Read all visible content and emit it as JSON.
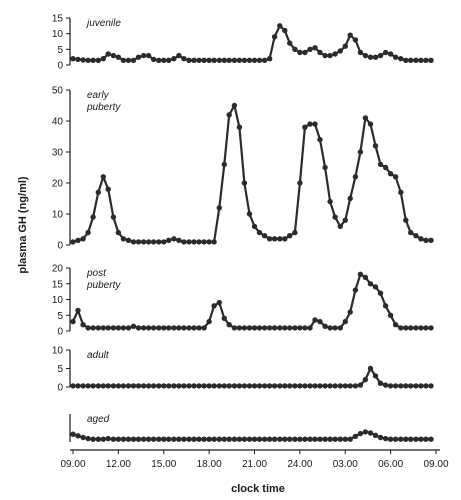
{
  "chart_data": {
    "type": "line",
    "ylabel": "plasma GH (ng/ml)",
    "xlabel": "clock time",
    "x_ticks": [
      "09.00",
      "12.00",
      "15.00",
      "18.00",
      "21.00",
      "24.00",
      "03.00",
      "06.00",
      "09.00"
    ],
    "x_range_hours": [
      9,
      33
    ],
    "color": "#2b2b2b",
    "panels": [
      {
        "name": "juvenile",
        "title_lines": [
          "juvenile"
        ],
        "ylim": [
          0,
          15
        ],
        "yticks": [
          0,
          5,
          10,
          15
        ],
        "x": [
          9.0,
          9.33,
          9.67,
          10.0,
          10.33,
          10.67,
          11.0,
          11.33,
          11.67,
          12.0,
          12.33,
          12.67,
          13.0,
          13.33,
          13.67,
          14.0,
          14.33,
          14.67,
          15.0,
          15.33,
          15.67,
          16.0,
          16.33,
          16.67,
          17.0,
          17.33,
          17.67,
          18.0,
          18.33,
          18.67,
          19.0,
          19.33,
          19.67,
          20.0,
          20.33,
          20.67,
          21.0,
          21.33,
          21.67,
          22.0,
          22.33,
          22.67,
          23.0,
          23.33,
          23.67,
          24.0,
          24.33,
          24.67,
          25.0,
          25.33,
          25.67,
          26.0,
          26.33,
          26.67,
          27.0,
          27.33,
          27.67,
          28.0,
          28.33,
          28.67,
          29.0,
          29.33,
          29.67,
          30.0,
          30.33,
          30.67,
          31.0,
          31.33,
          31.67,
          32.0,
          32.33,
          32.67
        ],
        "values": [
          2,
          1.8,
          1.6,
          1.5,
          1.5,
          1.5,
          2,
          3.5,
          3,
          2.5,
          1.5,
          1.5,
          1.5,
          2.5,
          3,
          3,
          1.8,
          1.5,
          1.5,
          1.5,
          2,
          3,
          2,
          1.5,
          1.5,
          1.5,
          1.5,
          1.5,
          1.5,
          1.5,
          1.5,
          1.5,
          1.5,
          1.5,
          1.5,
          1.5,
          1.5,
          1.5,
          1.5,
          2,
          9,
          12.5,
          11,
          7,
          5,
          4,
          4,
          5,
          5.5,
          4,
          3,
          3,
          3.5,
          4.5,
          6,
          9.5,
          8,
          4,
          3,
          2.5,
          2.5,
          3,
          4,
          3.5,
          2.5,
          2,
          1.5,
          1.5,
          1.5,
          1.5,
          1.5,
          1.5
        ]
      },
      {
        "name": "early puberty",
        "title_lines": [
          "early",
          "puberty"
        ],
        "ylim": [
          0,
          50
        ],
        "yticks": [
          0,
          10,
          20,
          30,
          40,
          50
        ],
        "x": [
          9.0,
          9.33,
          9.67,
          10.0,
          10.33,
          10.67,
          11.0,
          11.33,
          11.67,
          12.0,
          12.33,
          12.67,
          13.0,
          13.33,
          13.67,
          14.0,
          14.33,
          14.67,
          15.0,
          15.33,
          15.67,
          16.0,
          16.33,
          16.67,
          17.0,
          17.33,
          17.67,
          18.0,
          18.33,
          18.67,
          19.0,
          19.33,
          19.67,
          20.0,
          20.33,
          20.67,
          21.0,
          21.33,
          21.67,
          22.0,
          22.33,
          22.67,
          23.0,
          23.33,
          23.67,
          24.0,
          24.33,
          24.67,
          25.0,
          25.33,
          25.67,
          26.0,
          26.33,
          26.67,
          27.0,
          27.33,
          27.67,
          28.0,
          28.33,
          28.67,
          29.0,
          29.33,
          29.67,
          30.0,
          30.33,
          30.67,
          31.0,
          31.33,
          31.67,
          32.0,
          32.33,
          32.67
        ],
        "values": [
          1,
          1.5,
          2,
          4,
          9,
          17,
          22,
          18,
          9,
          4,
          2,
          1.5,
          1,
          1,
          1,
          1,
          1,
          1,
          1,
          1.5,
          2,
          1.5,
          1,
          1,
          1,
          1,
          1,
          1,
          1,
          12,
          26,
          42,
          45,
          38,
          20,
          10,
          6,
          4,
          3,
          2,
          2,
          2,
          2,
          3,
          4,
          20,
          38,
          39,
          39,
          34,
          25,
          14,
          9,
          6,
          8,
          15,
          22,
          30,
          41,
          39,
          32,
          26,
          25,
          23,
          22,
          17,
          8,
          4,
          3,
          2,
          1.5,
          1.5
        ]
      },
      {
        "name": "post puberty",
        "title_lines": [
          "post",
          "puberty"
        ],
        "ylim": [
          0,
          20
        ],
        "yticks": [
          0,
          5,
          10,
          15,
          20
        ],
        "x": [
          9.0,
          9.33,
          9.67,
          10.0,
          10.33,
          10.67,
          11.0,
          11.33,
          11.67,
          12.0,
          12.33,
          12.67,
          13.0,
          13.33,
          13.67,
          14.0,
          14.33,
          14.67,
          15.0,
          15.33,
          15.67,
          16.0,
          16.33,
          16.67,
          17.0,
          17.33,
          17.67,
          18.0,
          18.33,
          18.67,
          19.0,
          19.33,
          19.67,
          20.0,
          20.33,
          20.67,
          21.0,
          21.33,
          21.67,
          22.0,
          22.33,
          22.67,
          23.0,
          23.33,
          23.67,
          24.0,
          24.33,
          24.67,
          25.0,
          25.33,
          25.67,
          26.0,
          26.33,
          26.67,
          27.0,
          27.33,
          27.67,
          28.0,
          28.33,
          28.67,
          29.0,
          29.33,
          29.67,
          30.0,
          30.33,
          30.67,
          31.0,
          31.33,
          31.67,
          32.0,
          32.33,
          32.67
        ],
        "values": [
          3,
          6.5,
          2,
          1,
          1,
          1,
          1,
          1,
          1,
          1,
          1,
          1,
          1.5,
          1,
          1,
          1,
          1,
          1,
          1,
          1,
          1,
          1,
          1,
          1,
          1,
          1,
          1,
          3,
          8,
          9,
          4,
          2,
          1,
          1,
          1,
          1,
          1,
          1,
          1,
          1,
          1,
          1,
          1,
          1,
          1,
          1,
          1,
          1,
          3.5,
          3,
          1.5,
          1,
          1,
          1,
          3,
          6,
          13,
          18,
          17,
          15,
          14,
          12,
          8,
          5,
          2,
          1,
          1,
          1,
          1,
          1,
          1,
          1
        ]
      },
      {
        "name": "adult",
        "title_lines": [
          "adult"
        ],
        "ylim": [
          0,
          10
        ],
        "yticks": [
          0,
          5,
          10
        ],
        "x": [
          9.0,
          9.33,
          9.67,
          10.0,
          10.33,
          10.67,
          11.0,
          11.33,
          11.67,
          12.0,
          12.33,
          12.67,
          13.0,
          13.33,
          13.67,
          14.0,
          14.33,
          14.67,
          15.0,
          15.33,
          15.67,
          16.0,
          16.33,
          16.67,
          17.0,
          17.33,
          17.67,
          18.0,
          18.33,
          18.67,
          19.0,
          19.33,
          19.67,
          20.0,
          20.33,
          20.67,
          21.0,
          21.33,
          21.67,
          22.0,
          22.33,
          22.67,
          23.0,
          23.33,
          23.67,
          24.0,
          24.33,
          24.67,
          25.0,
          25.33,
          25.67,
          26.0,
          26.33,
          26.67,
          27.0,
          27.33,
          27.67,
          28.0,
          28.33,
          28.67,
          29.0,
          29.33,
          29.67,
          30.0,
          30.33,
          30.67,
          31.0,
          31.33,
          31.67,
          32.0,
          32.33,
          32.67
        ],
        "values": [
          0.3,
          0.3,
          0.3,
          0.3,
          0.3,
          0.3,
          0.3,
          0.3,
          0.3,
          0.3,
          0.3,
          0.3,
          0.3,
          0.3,
          0.3,
          0.3,
          0.3,
          0.3,
          0.3,
          0.3,
          0.3,
          0.3,
          0.3,
          0.3,
          0.3,
          0.3,
          0.3,
          0.3,
          0.3,
          0.3,
          0.3,
          0.3,
          0.3,
          0.3,
          0.3,
          0.3,
          0.3,
          0.3,
          0.3,
          0.3,
          0.3,
          0.3,
          0.3,
          0.3,
          0.3,
          0.3,
          0.3,
          0.3,
          0.3,
          0.3,
          0.3,
          0.3,
          0.3,
          0.3,
          0.3,
          0.3,
          0.3,
          0.5,
          2,
          5,
          3,
          1,
          0.5,
          0.3,
          0.3,
          0.3,
          0.3,
          0.3,
          0.3,
          0.3,
          0.3,
          0.3
        ]
      },
      {
        "name": "aged",
        "title_lines": [
          "aged"
        ],
        "ylim": [
          0,
          5
        ],
        "yticks": [],
        "x": [
          9.0,
          9.33,
          9.67,
          10.0,
          10.33,
          10.67,
          11.0,
          11.33,
          11.67,
          12.0,
          12.33,
          12.67,
          13.0,
          13.33,
          13.67,
          14.0,
          14.33,
          14.67,
          15.0,
          15.33,
          15.67,
          16.0,
          16.33,
          16.67,
          17.0,
          17.33,
          17.67,
          18.0,
          18.33,
          18.67,
          19.0,
          19.33,
          19.67,
          20.0,
          20.33,
          20.67,
          21.0,
          21.33,
          21.67,
          22.0,
          22.33,
          22.67,
          23.0,
          23.33,
          23.67,
          24.0,
          24.33,
          24.67,
          25.0,
          25.33,
          25.67,
          26.0,
          26.33,
          26.67,
          27.0,
          27.33,
          27.67,
          28.0,
          28.33,
          28.67,
          29.0,
          29.33,
          29.67,
          30.0,
          30.33,
          30.67,
          31.0,
          31.33,
          31.67,
          32.0,
          32.33,
          32.67
        ],
        "values": [
          1.4,
          1.1,
          0.8,
          0.6,
          0.5,
          0.5,
          0.5,
          0.6,
          0.5,
          0.5,
          0.5,
          0.5,
          0.5,
          0.5,
          0.5,
          0.5,
          0.5,
          0.5,
          0.5,
          0.5,
          0.5,
          0.5,
          0.5,
          0.5,
          0.5,
          0.5,
          0.5,
          0.5,
          0.5,
          0.5,
          0.5,
          0.5,
          0.5,
          0.5,
          0.5,
          0.5,
          0.5,
          0.5,
          0.5,
          0.5,
          0.5,
          0.5,
          0.5,
          0.5,
          0.5,
          0.5,
          0.5,
          0.5,
          0.5,
          0.5,
          0.5,
          0.5,
          0.5,
          0.5,
          0.5,
          0.5,
          1,
          1.5,
          1.8,
          1.6,
          1.2,
          0.8,
          0.6,
          0.5,
          0.5,
          0.5,
          0.5,
          0.5,
          0.5,
          0.5,
          0.5,
          0.5
        ]
      }
    ]
  }
}
